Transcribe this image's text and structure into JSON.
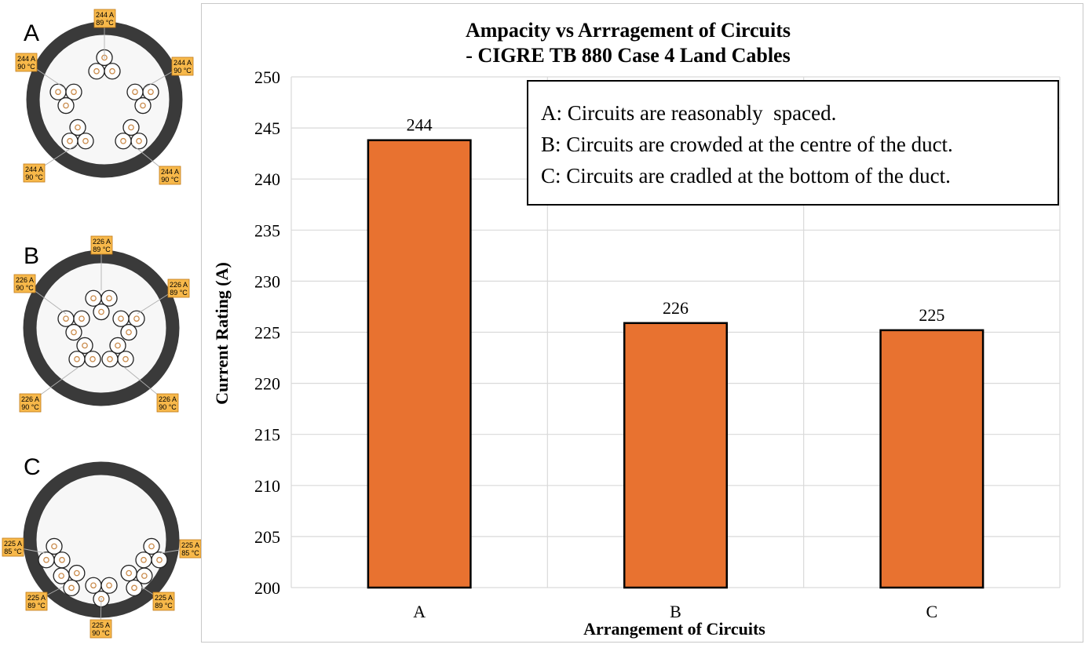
{
  "panels": [
    {
      "letter": "A",
      "callouts": [
        {
          "current": "244 A",
          "temp": "89 °C"
        },
        {
          "current": "244 A",
          "temp": "90 °C"
        },
        {
          "current": "244 A",
          "temp": "90 °C"
        },
        {
          "current": "244 A",
          "temp": "90 °C"
        },
        {
          "current": "244 A",
          "temp": "90 °C"
        }
      ]
    },
    {
      "letter": "B",
      "callouts": [
        {
          "current": "226 A",
          "temp": "89 °C"
        },
        {
          "current": "226 A",
          "temp": "90 °C"
        },
        {
          "current": "226 A",
          "temp": "89 °C"
        },
        {
          "current": "226 A",
          "temp": "90 °C"
        },
        {
          "current": "226 A",
          "temp": "90 °C"
        }
      ]
    },
    {
      "letter": "C",
      "callouts": [
        {
          "current": "225 A",
          "temp": "85 °C"
        },
        {
          "current": "225 A",
          "temp": "85 °C"
        },
        {
          "current": "225 A",
          "temp": "89 °C"
        },
        {
          "current": "225 A",
          "temp": "89 °C"
        },
        {
          "current": "225 A",
          "temp": "90 °C"
        }
      ]
    }
  ],
  "legend_box": [
    "A: Circuits are reasonably  spaced.",
    "B: Circuits are crowded at the centre of the duct.",
    "C: Circuits are cradled at the bottom of the duct."
  ],
  "colors": {
    "bar": "#e87230",
    "bar_border": "#000000",
    "duct": "#3a3a3a",
    "duct_fill": "#f7f7f7",
    "callout_fill": "#f7b84a",
    "callout_border": "#c07a1a",
    "conductor": "#c98a4a",
    "grid": "#d9d9d9"
  },
  "chart_data": {
    "type": "bar",
    "title_lines": [
      "Ampacity vs Arrragement of Circuits",
      "- CIGRE TB 880 Case 4 Land Cables"
    ],
    "xlabel": "Arrangement of Circuits",
    "ylabel": "Current Rating (A)",
    "categories": [
      "A",
      "B",
      "C"
    ],
    "values": [
      244,
      226,
      225
    ],
    "plotted_values": [
      243.8,
      225.9,
      225.2
    ],
    "data_labels": [
      "244",
      "226",
      "225"
    ],
    "ylim": [
      200,
      250
    ],
    "yticks": [
      200,
      205,
      210,
      215,
      220,
      225,
      230,
      235,
      240,
      245,
      250
    ],
    "grid": true,
    "legend_position": "top-right"
  }
}
